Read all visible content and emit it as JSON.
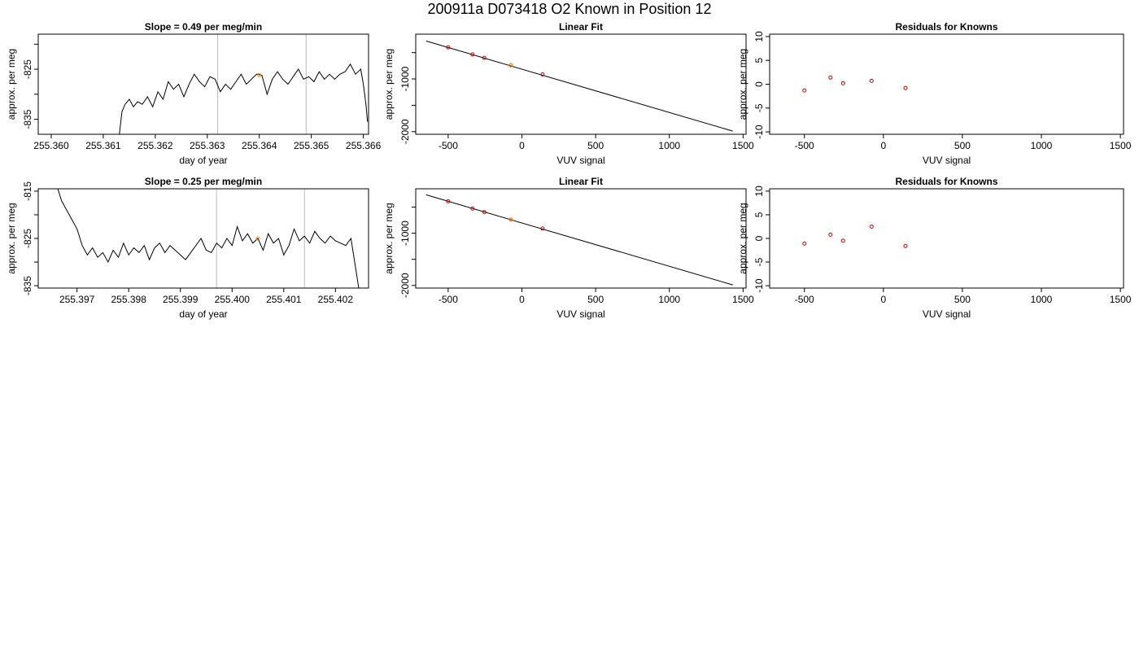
{
  "page_title": "200911a     D073418   O2 Known in Position  12",
  "colors": {
    "axis": "#000000",
    "trace": "#000000",
    "fit_line": "#000000",
    "known_point": "#cc0000",
    "sample_point": "#ff8c00",
    "marker_line": "#bbbbbb"
  },
  "chart_data": [
    {
      "type": "line",
      "title": "Slope =  0.49  per meg/min",
      "xlabel": "day of year",
      "ylabel": "approx. per meg",
      "xlim": [
        255.35975,
        255.3661
      ],
      "ylim": [
        -838,
        -818
      ],
      "x_ticks": [
        255.36,
        255.361,
        255.362,
        255.363,
        255.364,
        255.365,
        255.366
      ],
      "x_tick_labels": [
        "255.360",
        "255.361",
        "255.362",
        "255.363",
        "255.364",
        "255.365",
        "255.366"
      ],
      "y_ticks": [
        -835,
        -830,
        -825,
        -820
      ],
      "y_tick_labels": [
        "-835",
        "",
        "-825",
        ""
      ],
      "vlines": [
        255.3632,
        255.3649
      ],
      "highlight": {
        "x": 255.364,
        "y": -826.2
      },
      "series": [
        {
          "x": [
            255.36131,
            255.36136,
            255.36142,
            255.3615,
            255.36158,
            255.36166,
            255.36175,
            255.36185,
            255.36195,
            255.36205,
            255.36215,
            255.36225,
            255.36235,
            255.36245,
            255.36255,
            255.36265,
            255.36275,
            255.36285,
            255.36295,
            255.36305,
            255.36315,
            255.36325,
            255.36335,
            255.36345,
            255.36355,
            255.36365,
            255.36375,
            255.36385,
            255.36395,
            255.36405,
            255.36415,
            255.36425,
            255.36435,
            255.36445,
            255.36455,
            255.36465,
            255.36475,
            255.36485,
            255.36495,
            255.36505,
            255.36515,
            255.36525,
            255.36535,
            255.36545,
            255.36555,
            255.36565,
            255.36575,
            255.36585,
            255.36595,
            255.366,
            255.36605,
            255.36608
          ],
          "y": [
            -838,
            -833.5,
            -832.0,
            -831.0,
            -832.5,
            -831.5,
            -832.0,
            -830.5,
            -832.5,
            -829.5,
            -831.0,
            -827.5,
            -829.0,
            -828.0,
            -830.5,
            -828.0,
            -826.0,
            -827.5,
            -828.5,
            -826.5,
            -827.0,
            -829.5,
            -828.0,
            -829.0,
            -827.5,
            -826.0,
            -828.0,
            -827.0,
            -826.0,
            -826.2,
            -830.0,
            -827.0,
            -825.5,
            -827.0,
            -828.0,
            -826.5,
            -825.0,
            -827.0,
            -826.5,
            -827.5,
            -825.5,
            -827.0,
            -826.0,
            -827.0,
            -826.0,
            -825.5,
            -824.0,
            -826.0,
            -825.0,
            -828.0,
            -832.0,
            -835.5
          ]
        }
      ]
    },
    {
      "type": "scatter",
      "title": "Linear Fit",
      "xlabel": "VUV signal",
      "ylabel": "approx. per meg",
      "xlim": [
        -720,
        1520
      ],
      "ylim": [
        -2050,
        -150
      ],
      "x_ticks": [
        -500,
        0,
        500,
        1000,
        1500
      ],
      "x_tick_labels": [
        "-500",
        "0",
        "500",
        "1000",
        "1500"
      ],
      "y_ticks": [
        -2000,
        -1500,
        -1000,
        -500
      ],
      "y_tick_labels": [
        "-2000",
        "",
        "-1000",
        ""
      ],
      "fit_line": {
        "x": [
          -650,
          1430
        ],
        "y": [
          -280,
          -1990
        ]
      },
      "known_points": {
        "x": [
          -500,
          -335,
          -255,
          -75,
          140
        ],
        "y": [
          -400,
          -535,
          -600,
          -740,
          -915
        ]
      },
      "sample_point": {
        "x": -75,
        "y": -740
      }
    },
    {
      "type": "scatter",
      "title": "Residuals for Knowns",
      "xlabel": "VUV signal",
      "ylabel": "approx. per meg",
      "xlim": [
        -720,
        1520
      ],
      "ylim": [
        -10.5,
        10.5
      ],
      "x_ticks": [
        -500,
        0,
        500,
        1000,
        1500
      ],
      "x_tick_labels": [
        "-500",
        "0",
        "500",
        "1000",
        "1500"
      ],
      "y_ticks": [
        -10,
        -5,
        0,
        5,
        10
      ],
      "y_tick_labels": [
        "-10",
        "-5",
        "0",
        "5",
        "10"
      ],
      "known_points": {
        "x": [
          -500,
          -335,
          -255,
          -75,
          140
        ],
        "y": [
          -1.3,
          1.4,
          0.2,
          0.7,
          -0.8
        ]
      }
    },
    {
      "type": "line",
      "title": "Slope =  0.25  per meg/min",
      "xlabel": "day of year",
      "ylabel": "approx. per meg",
      "xlim": [
        255.39625,
        255.40264
      ],
      "ylim": [
        -835.5,
        -814.5
      ],
      "x_ticks": [
        255.397,
        255.398,
        255.399,
        255.4,
        255.401,
        255.402
      ],
      "x_tick_labels": [
        "255.397",
        "255.398",
        "255.399",
        "255.400",
        "255.401",
        "255.402"
      ],
      "y_ticks": [
        -835,
        -830,
        -825,
        -820,
        -815
      ],
      "y_tick_labels": [
        "-835",
        "",
        "-825",
        "",
        "-815"
      ],
      "vlines": [
        255.3997,
        255.4014
      ],
      "highlight": {
        "x": 255.4005,
        "y": -825.0
      },
      "series": [
        {
          "x": [
            255.39663,
            255.3967,
            255.3968,
            255.3969,
            255.397,
            255.3971,
            255.3972,
            255.3973,
            255.3974,
            255.3975,
            255.3976,
            255.3977,
            255.3978,
            255.3979,
            255.398,
            255.3981,
            255.3982,
            255.3983,
            255.3984,
            255.3985,
            255.3986,
            255.3987,
            255.3988,
            255.3989,
            255.399,
            255.3991,
            255.3992,
            255.3993,
            255.3994,
            255.3995,
            255.3996,
            255.3997,
            255.3998,
            255.3999,
            255.4,
            255.4001,
            255.4002,
            255.4003,
            255.4004,
            255.4005,
            255.4006,
            255.4007,
            255.4008,
            255.4009,
            255.401,
            255.4011,
            255.4012,
            255.4013,
            255.4014,
            255.4015,
            255.4016,
            255.4017,
            255.4018,
            255.4019,
            255.402,
            255.4021,
            255.4022,
            255.4023,
            255.4024,
            255.40245
          ],
          "y": [
            -814.5,
            -817,
            -819,
            -821,
            -823,
            -826.5,
            -828.5,
            -827,
            -829,
            -828,
            -830,
            -827.5,
            -829,
            -826,
            -828.5,
            -827,
            -828,
            -826.5,
            -829.5,
            -827,
            -826,
            -828,
            -826.5,
            -827.5,
            -828.5,
            -829.5,
            -828,
            -826.5,
            -825,
            -827.5,
            -828,
            -826,
            -827,
            -825,
            -826.5,
            -822.5,
            -825.5,
            -824,
            -826,
            -825,
            -827.5,
            -824,
            -826,
            -825,
            -828.5,
            -826.5,
            -823,
            -825.5,
            -824.5,
            -826,
            -823.5,
            -825,
            -826,
            -824.5,
            -825.5,
            -826,
            -826.5,
            -825,
            -832,
            -835.5
          ]
        }
      ]
    },
    {
      "type": "scatter",
      "title": "Linear Fit",
      "xlabel": "VUV signal",
      "ylabel": "approx. per meg",
      "xlim": [
        -720,
        1520
      ],
      "ylim": [
        -2050,
        -150
      ],
      "x_ticks": [
        -500,
        0,
        500,
        1000,
        1500
      ],
      "x_tick_labels": [
        "-500",
        "0",
        "500",
        "1000",
        "1500"
      ],
      "y_ticks": [
        -2000,
        -1500,
        -1000,
        -500
      ],
      "y_tick_labels": [
        "-2000",
        "",
        "-1000",
        ""
      ],
      "fit_line": {
        "x": [
          -650,
          1430
        ],
        "y": [
          -265,
          -1990
        ]
      },
      "known_points": {
        "x": [
          -500,
          -335,
          -255,
          -75,
          140
        ],
        "y": [
          -390,
          -530,
          -595,
          -740,
          -910
        ]
      },
      "sample_point": {
        "x": -75,
        "y": -740
      }
    },
    {
      "type": "scatter",
      "title": "Residuals for Knowns",
      "xlabel": "VUV signal",
      "ylabel": "approx. per meg",
      "xlim": [
        -720,
        1520
      ],
      "ylim": [
        -10.5,
        10.5
      ],
      "x_ticks": [
        -500,
        0,
        500,
        1000,
        1500
      ],
      "x_tick_labels": [
        "-500",
        "0",
        "500",
        "1000",
        "1500"
      ],
      "y_ticks": [
        -10,
        -5,
        0,
        5,
        10
      ],
      "y_tick_labels": [
        "-10",
        "-5",
        "0",
        "5",
        "10"
      ],
      "known_points": {
        "x": [
          -500,
          -335,
          -255,
          -75,
          140
        ],
        "y": [
          -1.1,
          0.8,
          -0.5,
          2.5,
          -1.6
        ]
      }
    }
  ]
}
